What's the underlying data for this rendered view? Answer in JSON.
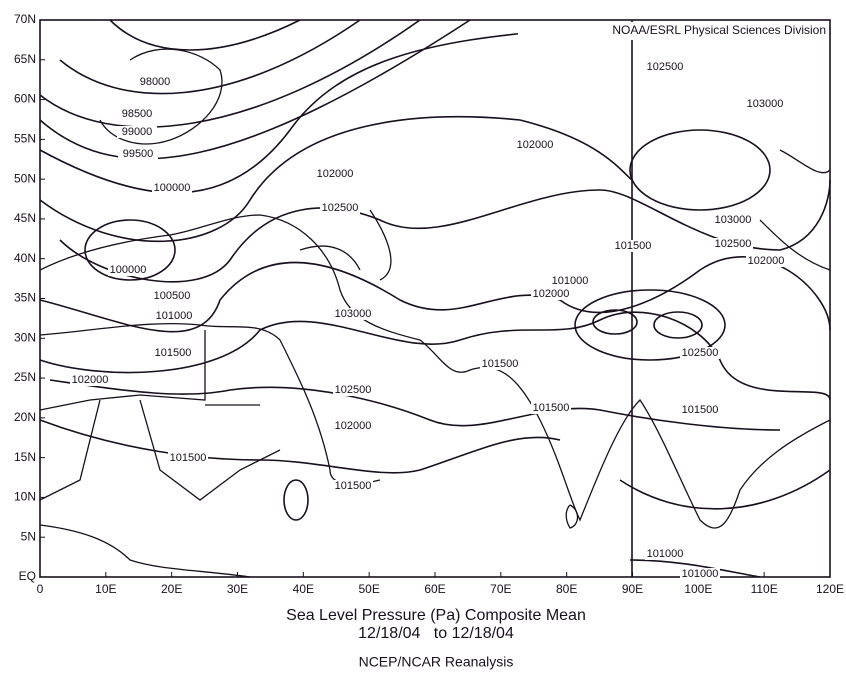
{
  "map": {
    "credit": "NOAA/ESRL Physical Sciences Division",
    "lat_labels": [
      "70N",
      "65N",
      "60N",
      "55N",
      "50N",
      "45N",
      "40N",
      "35N",
      "30N",
      "25N",
      "20N",
      "15N",
      "10N",
      "5N",
      "EQ"
    ],
    "lon_labels": [
      "0",
      "10E",
      "20E",
      "30E",
      "40E",
      "50E",
      "60E",
      "70E",
      "80E",
      "90E",
      "100E",
      "110E",
      "120E"
    ],
    "contour_labels": [
      98000,
      98500,
      99000,
      99500,
      100000,
      102000,
      102500,
      100000,
      100500,
      101000,
      101500,
      102000,
      103000,
      102500,
      102000,
      101500,
      101500,
      102000,
      101500,
      101500,
      101000,
      102000,
      102500,
      103000,
      103000,
      102500,
      102000,
      101500,
      102500,
      101500,
      101000,
      101000
    ],
    "title": "Sea Level Pressure (Pa) Composite Mean",
    "date_range": "12/18/04   to 12/18/04",
    "source": "NCEP/NCAR Reanalysis"
  }
}
